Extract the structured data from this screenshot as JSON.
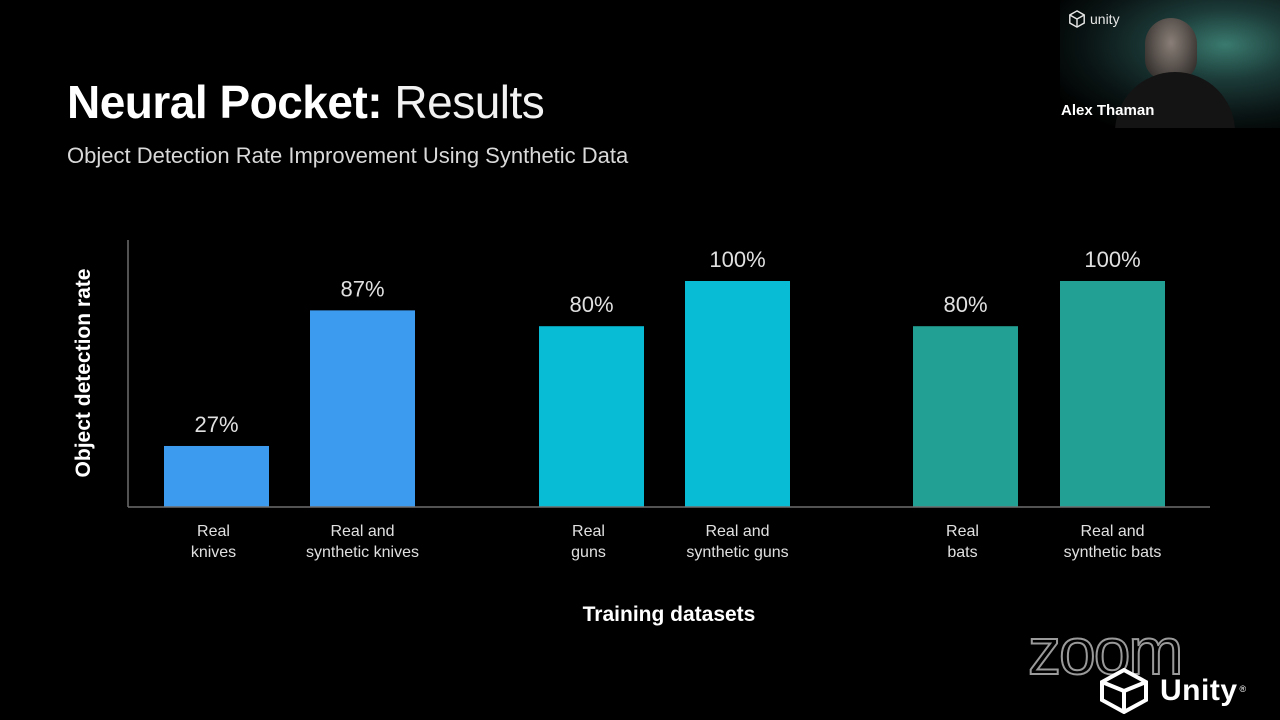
{
  "header": {
    "title_bold": "Neural Pocket:",
    "title_light": "Results",
    "subtitle": "Object Detection Rate Improvement Using Synthetic Data"
  },
  "colors": {
    "knives": "#3d9bef",
    "guns": "#08bcd6",
    "bats": "#22a093",
    "axis": "#6e6e6e",
    "label": "#e0e0e0"
  },
  "chart_data": {
    "type": "bar",
    "title": "",
    "xlabel": "Training datasets",
    "ylabel": "Object detection rate",
    "ylim": [
      0,
      100
    ],
    "grid": false,
    "legend": "none",
    "categories": [
      [
        "Real",
        "knives"
      ],
      [
        "Real and",
        "synthetic knives"
      ],
      [
        "Real",
        "guns"
      ],
      [
        "Real and",
        "synthetic guns"
      ],
      [
        "Real",
        "bats"
      ],
      [
        "Real and",
        "synthetic bats"
      ]
    ],
    "values": [
      27,
      87,
      80,
      100,
      80,
      100
    ],
    "value_labels": [
      "27%",
      "87%",
      "80%",
      "100%",
      "80%",
      "100%"
    ],
    "groups": [
      "knives",
      "knives",
      "guns",
      "guns",
      "bats",
      "bats"
    ]
  },
  "webcam": {
    "logo_text": "unity",
    "speaker_name": "Alex Thaman"
  },
  "watermarks": {
    "zoom": "zoom",
    "unity": "Unity",
    "unity_reg": "®"
  }
}
